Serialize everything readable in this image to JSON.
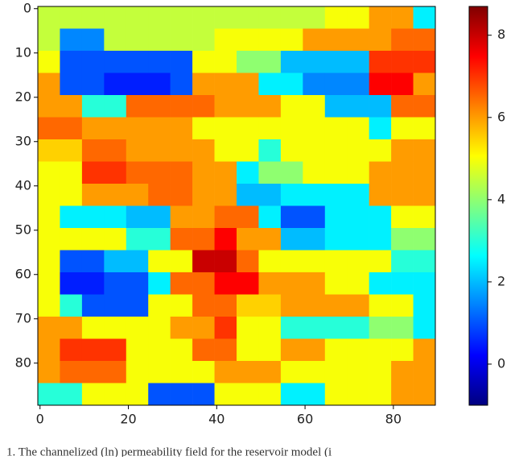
{
  "chart_data": {
    "type": "heatmap",
    "colormap": "jet",
    "xbins": [
      -0.5,
      4.5,
      9.5,
      14.5,
      19.5,
      24.5,
      29.5,
      34.5,
      39.5,
      44.5,
      49.5,
      54.5,
      59.5,
      64.5,
      69.5,
      74.5,
      79.5,
      84.5,
      89.5
    ],
    "ybins": [
      -0.5,
      4.5,
      9.5,
      14.5,
      19.5,
      24.5,
      29.5,
      34.5,
      39.5,
      44.5,
      49.5,
      54.5,
      59.5,
      64.5,
      69.5,
      74.5,
      79.5,
      84.5,
      89.5
    ],
    "xlim": [
      -0.5,
      89.5
    ],
    "ylim": [
      89.5,
      -0.5
    ],
    "xticks": [
      0,
      20,
      40,
      60,
      80
    ],
    "yticks": [
      0,
      10,
      20,
      30,
      40,
      50,
      60,
      70,
      80
    ],
    "clim": [
      -1,
      8.7
    ],
    "cticks": [
      0,
      2,
      4,
      6,
      8
    ],
    "z": [
      [
        4.5,
        4.5,
        4.5,
        4.5,
        4.5,
        4.5,
        4.5,
        4.5,
        4.5,
        4.5,
        4.5,
        4.5,
        4.5,
        5,
        5,
        6,
        6,
        2.5
      ],
      [
        4.5,
        1.5,
        1.5,
        4.5,
        4.5,
        4.5,
        4.5,
        4.5,
        5,
        5,
        5,
        5,
        6,
        6,
        6,
        6,
        6.5,
        6.5
      ],
      [
        5,
        1,
        1,
        1,
        1,
        1,
        1,
        5,
        5,
        4,
        4,
        2,
        2,
        2,
        2,
        7,
        7,
        7
      ],
      [
        6,
        1,
        1,
        0.5,
        0.5,
        0.5,
        1,
        6,
        6,
        6,
        2.5,
        2.5,
        1.5,
        1.5,
        1.5,
        7.5,
        7.5,
        6
      ],
      [
        6,
        6,
        3,
        3,
        6.5,
        6.5,
        6.5,
        6.5,
        6,
        6,
        6,
        5,
        5,
        2,
        2,
        2,
        6.5,
        6.5
      ],
      [
        6.5,
        6.5,
        6,
        6,
        6,
        6,
        6,
        5,
        5,
        5,
        5,
        5,
        5,
        5,
        5,
        2.5,
        5,
        5
      ],
      [
        5.5,
        5.5,
        6.5,
        6.5,
        6,
        6,
        6,
        6,
        5,
        5,
        3,
        5,
        5,
        5,
        5,
        5,
        6,
        6
      ],
      [
        5,
        5,
        7,
        7,
        6.5,
        6.5,
        6.5,
        6,
        6,
        2.5,
        4,
        4,
        5,
        5,
        5,
        6,
        6,
        6
      ],
      [
        5,
        5,
        6,
        6,
        6,
        6.5,
        6.5,
        6,
        6,
        2,
        2,
        2.5,
        2.5,
        2.5,
        2.5,
        6,
        6,
        6
      ],
      [
        5,
        2.5,
        2.5,
        2.5,
        2,
        2,
        6,
        6,
        6.5,
        6.5,
        2.5,
        1,
        1,
        2.5,
        2.5,
        2.5,
        5,
        5
      ],
      [
        5,
        5,
        5,
        5,
        3,
        3,
        6.5,
        6.5,
        7.5,
        6,
        6,
        2,
        2,
        2.5,
        2.5,
        2.5,
        4,
        4
      ],
      [
        5,
        1,
        1,
        2,
        2,
        5,
        5,
        8,
        8,
        6.5,
        5,
        5,
        5,
        5,
        5,
        5,
        3,
        3
      ],
      [
        5,
        0.5,
        0.5,
        1,
        1,
        2.5,
        6.5,
        6.5,
        7.5,
        7.5,
        6,
        6,
        6,
        5,
        5,
        2.5,
        2.5,
        2.5
      ],
      [
        5,
        3,
        1,
        1,
        1,
        5,
        5,
        6.5,
        6.5,
        5.5,
        5.5,
        6,
        6,
        6,
        6,
        5,
        5,
        2.5
      ],
      [
        6,
        6,
        5,
        5,
        5,
        5,
        6,
        6,
        7,
        5,
        5,
        3,
        3,
        3,
        3,
        4,
        4,
        2.5
      ],
      [
        6,
        7,
        7,
        7,
        5,
        5,
        5,
        6.5,
        6.5,
        5,
        5,
        6,
        6,
        5,
        5,
        5,
        5,
        6
      ],
      [
        6,
        6.5,
        6.5,
        6.5,
        5,
        5,
        5,
        5,
        6,
        6,
        6,
        5,
        5,
        5,
        5,
        5,
        6,
        6
      ],
      [
        3,
        3,
        5,
        5,
        5,
        1,
        1,
        1,
        5,
        5,
        5,
        2.5,
        2.5,
        5,
        5,
        5,
        6,
        6
      ]
    ],
    "caption": "1. The channelized (ln) permeability field for the reservoir model (i"
  }
}
